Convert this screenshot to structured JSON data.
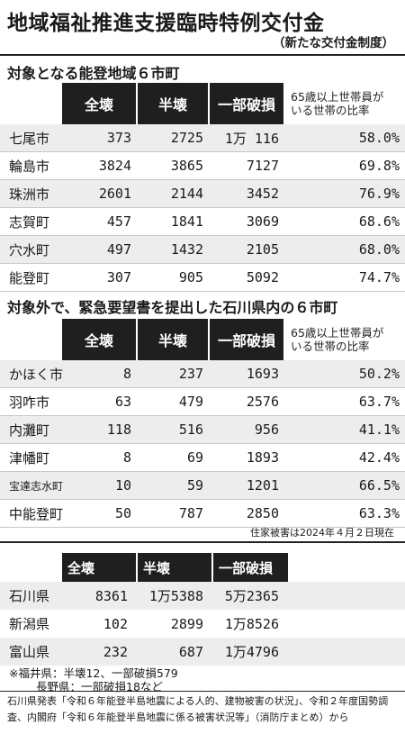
{
  "title": "地域福祉推進支援臨時特例交付金",
  "subtitle": "（新たな交付金制度）",
  "section1": {
    "title": "対象となる能登地域６市町",
    "headers": [
      "全壊",
      "半壊",
      "一部破損",
      "65歳以上世帯員が",
      "いる世帯の比率"
    ],
    "rows": [
      {
        "name": "七尾市",
        "full": "373",
        "half": "2725",
        "partial": "1万 116",
        "ratio": "58.0%"
      },
      {
        "name": "輪島市",
        "full": "3824",
        "half": "3865",
        "partial": "7127",
        "ratio": "69.8%"
      },
      {
        "name": "珠洲市",
        "full": "2601",
        "half": "2144",
        "partial": "3452",
        "ratio": "76.9%"
      },
      {
        "name": "志賀町",
        "full": "457",
        "half": "1841",
        "partial": "3069",
        "ratio": "68.6%"
      },
      {
        "name": "穴水町",
        "full": "497",
        "half": "1432",
        "partial": "2105",
        "ratio": "68.0%"
      },
      {
        "name": "能登町",
        "full": "307",
        "half": "905",
        "partial": "5092",
        "ratio": "74.7%"
      }
    ]
  },
  "section2": {
    "title": "対象外で、緊急要望書を提出した石川県内の６市町",
    "headers": [
      "全壊",
      "半壊",
      "一部破損",
      "65歳以上世帯員が",
      "いる世帯の比率"
    ],
    "rows": [
      {
        "name": "かほく市",
        "full": "8",
        "half": "237",
        "partial": "1693",
        "ratio": "50.2%"
      },
      {
        "name": "羽咋市",
        "full": "63",
        "half": "479",
        "partial": "2576",
        "ratio": "63.7%"
      },
      {
        "name": "内灘町",
        "full": "118",
        "half": "516",
        "partial": "956",
        "ratio": "41.1%"
      },
      {
        "name": "津幡町",
        "full": "8",
        "half": "69",
        "partial": "1893",
        "ratio": "42.4%"
      },
      {
        "name": "宝達志水町",
        "full": "10",
        "half": "59",
        "partial": "1201",
        "ratio": "66.5%"
      },
      {
        "name": "中能登町",
        "full": "50",
        "half": "787",
        "partial": "2850",
        "ratio": "63.3%"
      }
    ],
    "note": "住家被害は2024年４月２日現在"
  },
  "section3": {
    "headers": [
      "全壊",
      "半壊",
      "一部破損"
    ],
    "rows": [
      {
        "name": "石川県",
        "full": "8361",
        "half": "1万5388",
        "partial": "5万2365"
      },
      {
        "name": "新潟県",
        "full": "102",
        "half": "2899",
        "partial": "1万8526"
      },
      {
        "name": "富山県",
        "full": "232",
        "half": "687",
        "partial": "1万4796"
      }
    ],
    "footnotes": [
      "※福井県：半壊12、一部破損579",
      "長野県：一部破損18など"
    ]
  },
  "source": "石川県発表「令和６年能登半島地震による人的、建物被害の状況」、令和２年度国勢調査、内閣府「令和６年能登半島地震に係る被害状況等」（消防庁まとめ）から"
}
